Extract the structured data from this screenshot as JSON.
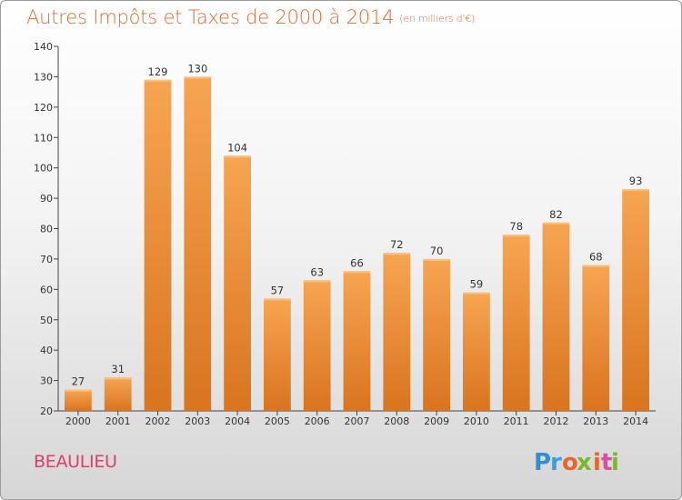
{
  "header": {
    "title": "Autres Impôts et Taxes de 2000 à 2014",
    "unit": "(en milliers d'€)"
  },
  "footer": {
    "commune": "BEAULIEU",
    "brand": "Proxiti",
    "brand_letters": [
      "P",
      "r",
      "o",
      "x",
      "i",
      "t",
      "i"
    ],
    "brand_colors": [
      "#2f8fd0",
      "#3aa0dc",
      "#e8652b",
      "#7ab833",
      "#e8652b",
      "#d94fa0",
      "#7ab833"
    ]
  },
  "colors": {
    "bar_top": "#f7a552",
    "bar_bottom": "#d9741f",
    "title": "#e46a2f",
    "commune": "#dc3f6a",
    "grid": "#cccccc"
  },
  "chart_data": {
    "type": "bar",
    "title": "Autres Impôts et Taxes de 2000 à 2014",
    "subtitle": "(en milliers d'€)",
    "categories": [
      "2000",
      "2001",
      "2002",
      "2003",
      "2004",
      "2005",
      "2006",
      "2007",
      "2008",
      "2009",
      "2010",
      "2011",
      "2012",
      "2013",
      "2014"
    ],
    "values": [
      27,
      31,
      129,
      130,
      104,
      57,
      63,
      66,
      72,
      70,
      59,
      78,
      82,
      68,
      93
    ],
    "ylim": [
      20,
      140
    ],
    "yticks": [
      20,
      30,
      40,
      50,
      60,
      70,
      80,
      90,
      100,
      110,
      120,
      130,
      140
    ],
    "grid": false,
    "data_labels": true,
    "legend": "none"
  }
}
